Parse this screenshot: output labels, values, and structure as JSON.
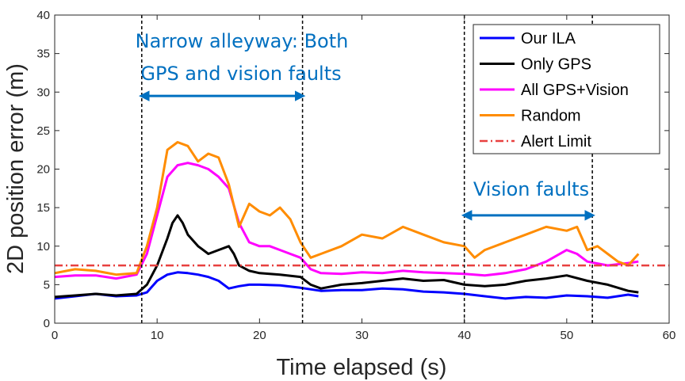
{
  "chart_data": {
    "type": "line",
    "xlabel": "Time elapsed (s)",
    "ylabel": "2D position error (m)",
    "xlim": [
      0,
      60
    ],
    "ylim": [
      0,
      40
    ],
    "xticks": [
      0,
      10,
      20,
      30,
      40,
      50,
      60
    ],
    "yticks": [
      0,
      5,
      10,
      15,
      20,
      25,
      30,
      35,
      40
    ],
    "legend_position": "top-right",
    "series": [
      {
        "name": "Our ILA",
        "color": "#0000FF",
        "x": [
          0,
          2,
          4,
          6,
          8,
          9,
          10,
          11,
          12,
          13,
          14,
          15,
          16,
          17,
          18,
          19,
          20,
          22,
          24,
          26,
          28,
          30,
          32,
          34,
          36,
          38,
          40,
          42,
          44,
          46,
          48,
          50,
          52,
          54,
          56,
          57
        ],
        "y": [
          3.2,
          3.5,
          3.8,
          3.5,
          3.6,
          4.0,
          5.5,
          6.3,
          6.6,
          6.5,
          6.3,
          6.0,
          5.5,
          4.5,
          4.8,
          5.0,
          5.0,
          4.9,
          4.6,
          4.2,
          4.3,
          4.3,
          4.5,
          4.4,
          4.1,
          4.0,
          3.8,
          3.5,
          3.2,
          3.4,
          3.3,
          3.6,
          3.5,
          3.3,
          3.7,
          3.5
        ]
      },
      {
        "name": "Only GPS",
        "color": "#000000",
        "x": [
          0,
          2,
          4,
          6,
          8,
          9,
          10,
          11,
          11.5,
          12,
          12.5,
          13,
          14,
          15,
          16,
          17,
          17.5,
          18,
          19,
          20,
          22,
          24,
          25,
          26,
          28,
          30,
          32,
          34,
          36,
          38,
          40,
          42,
          44,
          46,
          48,
          50,
          52,
          54,
          56,
          57
        ],
        "y": [
          3.4,
          3.6,
          3.8,
          3.6,
          3.8,
          5.0,
          7.5,
          11.0,
          13.0,
          14.0,
          13.0,
          11.5,
          10.0,
          9.0,
          9.5,
          10.0,
          9.0,
          7.5,
          6.8,
          6.5,
          6.3,
          6.0,
          5.0,
          4.5,
          5.0,
          5.2,
          5.5,
          5.8,
          5.5,
          5.6,
          5.0,
          4.8,
          5.0,
          5.5,
          5.8,
          6.2,
          5.5,
          5.0,
          4.2,
          4.0
        ]
      },
      {
        "name": "All GPS+Vision",
        "color": "#FF00FF",
        "x": [
          0,
          2,
          4,
          6,
          8,
          9,
          10,
          11,
          12,
          13,
          14,
          15,
          16,
          17,
          18,
          19,
          20,
          21,
          22,
          23,
          24,
          25,
          26,
          28,
          30,
          32,
          34,
          36,
          38,
          40,
          42,
          44,
          46,
          48,
          50,
          51,
          52,
          54,
          56,
          57
        ],
        "y": [
          6.0,
          6.2,
          6.2,
          5.8,
          6.3,
          9.0,
          14.0,
          19.0,
          20.5,
          20.8,
          20.5,
          20.0,
          19.0,
          17.5,
          13.0,
          10.5,
          10.0,
          10.0,
          9.5,
          9.0,
          8.5,
          7.0,
          6.5,
          6.4,
          6.6,
          6.5,
          6.8,
          6.6,
          6.5,
          6.4,
          6.2,
          6.5,
          7.0,
          8.0,
          9.5,
          9.0,
          8.0,
          7.5,
          7.8,
          8.0
        ]
      },
      {
        "name": "Random",
        "color": "#FF8C00",
        "x": [
          0,
          2,
          4,
          6,
          8,
          9,
          10,
          11,
          12,
          13,
          14,
          15,
          16,
          17,
          18,
          19,
          20,
          21,
          22,
          23,
          24,
          25,
          26,
          28,
          30,
          32,
          34,
          36,
          38,
          40,
          41,
          42,
          44,
          46,
          48,
          50,
          51,
          52,
          53,
          54,
          55,
          56,
          57
        ],
        "y": [
          6.5,
          7.0,
          6.8,
          6.3,
          6.5,
          10.0,
          15.0,
          22.5,
          23.5,
          23.0,
          21.0,
          22.0,
          21.5,
          18.0,
          12.5,
          15.5,
          14.5,
          14.0,
          15.0,
          13.5,
          10.5,
          8.5,
          9.0,
          10.0,
          11.5,
          11.0,
          12.5,
          11.5,
          10.5,
          10.0,
          8.5,
          9.5,
          10.5,
          11.5,
          12.5,
          12.0,
          12.5,
          9.5,
          10.0,
          9.0,
          8.0,
          7.5,
          9.0
        ]
      },
      {
        "name": "Alert Limit",
        "color": "#E8403F",
        "style": "dash-dot",
        "x": [
          0,
          60
        ],
        "y": [
          7.5,
          7.5
        ]
      }
    ],
    "vlines": [
      8.5,
      24.2,
      40.0,
      52.5
    ],
    "annotations": [
      {
        "lines": [
          "Narrow alleyway: Both",
          "GPS and vision faults"
        ],
        "arrow_from": 8.5,
        "arrow_to": 24.2,
        "arrow_y": 29.5
      },
      {
        "lines": [
          "Vision faults"
        ],
        "arrow_from": 40.0,
        "arrow_to": 52.5,
        "arrow_y": 14.0
      }
    ]
  }
}
